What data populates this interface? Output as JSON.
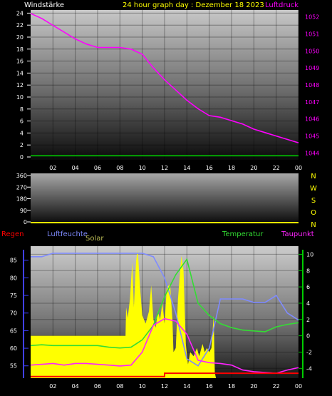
{
  "title": "24 hour graph day : Dezember 18 2023",
  "colors": {
    "background": "#000000",
    "title": "#ffff00",
    "axis_text": "#ffffff",
    "pressure": "#ff00ff",
    "wind": "#00cc00",
    "humidity": "#7f8bff",
    "solar": "#ffff00",
    "temperature": "#33dd33",
    "dewpoint": "#ff22ff",
    "rain": "#ff0000",
    "left_scale": "#4040ff",
    "right_scale": "#00cc00"
  },
  "chart_data": [
    {
      "type": "line",
      "name": "pressure_wind",
      "left_label": "Windstärke",
      "right_label": "Luftdruck",
      "x_ticks": [
        "02",
        "04",
        "06",
        "08",
        "10",
        "12",
        "14",
        "16",
        "18",
        "20",
        "22",
        "00"
      ],
      "x": [
        0,
        1,
        2,
        3,
        4,
        5,
        6,
        7,
        8,
        9,
        10,
        11,
        12,
        13,
        14,
        15,
        16,
        17,
        18,
        19,
        20,
        21,
        22,
        23,
        24
      ],
      "y_left_ticks": [
        "0",
        "2",
        "4",
        "6",
        "8",
        "10",
        "12",
        "14",
        "16",
        "18",
        "20",
        "22",
        "24"
      ],
      "y_left_range": [
        0,
        25
      ],
      "y_right_ticks": [
        "1044",
        "1045",
        "1046",
        "1047",
        "1048",
        "1049",
        "1050",
        "1051",
        "1052"
      ],
      "y_right_range": [
        1043.6,
        1052.4
      ],
      "series": [
        {
          "name": "Luftdruck",
          "axis": "right",
          "values": [
            1052.2,
            1051.9,
            1051.5,
            1051.1,
            1050.7,
            1050.4,
            1050.2,
            1050.2,
            1050.2,
            1050.1,
            1049.8,
            1049.0,
            1048.3,
            1047.7,
            1047.1,
            1046.6,
            1046.2,
            1046.1,
            1045.9,
            1045.7,
            1045.4,
            1045.2,
            1045.0,
            1044.8,
            1044.6
          ]
        },
        {
          "name": "Windstärke",
          "axis": "left",
          "values": [
            0.2,
            0.2,
            0.2,
            0.2,
            0.2,
            0.2,
            0.2,
            0.2,
            0.2,
            0.2,
            0.2,
            0.2,
            0.2,
            0.2,
            0.2,
            0.2,
            0.2,
            0.2,
            0.2,
            0.2,
            0.2,
            0.2,
            0.2,
            0.2,
            0.2
          ]
        }
      ]
    },
    {
      "type": "line",
      "name": "wind_direction",
      "y_left_ticks": [
        "0",
        "90",
        "180",
        "270",
        "360"
      ],
      "y_left_range": [
        0,
        360
      ],
      "direction_letters": [
        "N",
        "W",
        "S",
        "O",
        "N"
      ],
      "x": [
        0,
        24
      ],
      "series": [
        {
          "name": "Windrichtung",
          "values": [
            0,
            0
          ]
        }
      ]
    },
    {
      "type": "line",
      "name": "weather",
      "labels": {
        "rain": "Regen",
        "humidity": "Luftfeuchte",
        "solar": "Solar",
        "temperature": "Temperatur",
        "dewpoint": "Taupunkt"
      },
      "x_ticks": [
        "02",
        "04",
        "06",
        "08",
        "10",
        "12",
        "14",
        "16",
        "18",
        "20",
        "22",
        "00"
      ],
      "y_left_ticks": [
        "55",
        "60",
        "65",
        "70",
        "75",
        "80",
        "85"
      ],
      "y_left_range": [
        51.5,
        89
      ],
      "y_right_ticks": [
        "-4",
        "-2",
        "0",
        "2",
        "4",
        "6",
        "8",
        "10"
      ],
      "y_right_range": [
        -5.2,
        11
      ],
      "x": [
        0,
        1,
        2,
        3,
        4,
        5,
        6,
        7,
        8,
        9,
        10,
        11,
        12,
        13,
        14,
        15,
        16,
        17,
        18,
        19,
        20,
        21,
        22,
        23,
        24
      ],
      "series": [
        {
          "name": "Luftfeuchte",
          "axis": "left",
          "values": [
            86,
            86,
            87,
            87,
            87,
            87,
            87,
            87,
            87,
            87,
            87,
            86,
            80,
            70,
            57,
            55,
            60,
            74,
            74,
            74,
            73,
            73,
            75,
            70,
            68
          ]
        },
        {
          "name": "Temperatur",
          "axis": "right",
          "values": [
            -1.2,
            -1.1,
            -1.2,
            -1.2,
            -1.2,
            -1.2,
            -1.2,
            -1.4,
            -1.5,
            -1.4,
            -0.5,
            1.3,
            4.8,
            7.5,
            9.4,
            4.0,
            2.5,
            1.5,
            1.0,
            0.7,
            0.6,
            0.5,
            1.1,
            1.4,
            1.6
          ]
        },
        {
          "name": "Taupunkt",
          "axis": "right",
          "values": [
            -3.6,
            -3.5,
            -3.4,
            -3.6,
            -3.4,
            -3.4,
            -3.5,
            -3.6,
            -3.7,
            -3.6,
            -2.0,
            1.3,
            2.1,
            1.8,
            0.2,
            -3.0,
            -3.3,
            -3.4,
            -3.6,
            -4.2,
            -4.4,
            -4.5,
            -4.6,
            -4.2,
            -3.9
          ]
        },
        {
          "name": "Solar",
          "points": [
            [
              0,
              0
            ],
            [
              8.5,
              0
            ],
            [
              8.55,
              3.5
            ],
            [
              8.7,
              2.2
            ],
            [
              8.9,
              4.5
            ],
            [
              9.1,
              9.0
            ],
            [
              9.25,
              3.5
            ],
            [
              9.45,
              9.2
            ],
            [
              9.6,
              10.5
            ],
            [
              9.8,
              6.0
            ],
            [
              10.0,
              2.5
            ],
            [
              10.3,
              1.5
            ],
            [
              10.6,
              3.0
            ],
            [
              10.8,
              6.2
            ],
            [
              11.0,
              2.0
            ],
            [
              11.2,
              1.0
            ],
            [
              11.4,
              3.0
            ],
            [
              11.6,
              2.0
            ],
            [
              11.8,
              4.0
            ],
            [
              12.0,
              1.5
            ],
            [
              12.2,
              6.0
            ],
            [
              12.5,
              6.3
            ],
            [
              12.7,
              2.0
            ],
            [
              12.8,
              -2.0
            ],
            [
              13.0,
              -1.5
            ],
            [
              13.2,
              4.5
            ],
            [
              13.5,
              9.8
            ],
            [
              13.7,
              8.0
            ],
            [
              13.9,
              -1.0
            ],
            [
              14.1,
              -3.5
            ],
            [
              14.3,
              -2.0
            ],
            [
              14.6,
              -2.5
            ],
            [
              14.9,
              -1.5
            ],
            [
              15.1,
              -2.5
            ],
            [
              15.4,
              -1.0
            ],
            [
              15.6,
              -2.0
            ],
            [
              15.8,
              -1.5
            ],
            [
              16.0,
              -2.0
            ],
            [
              16.2,
              -1.5
            ],
            [
              16.4,
              2.5
            ],
            [
              16.5,
              -4.5
            ],
            [
              16.6,
              -5.2
            ],
            [
              24,
              -5.2
            ]
          ]
        },
        {
          "name": "Regen",
          "points": [
            [
              0,
              -5.0
            ],
            [
              12,
              -5.0
            ],
            [
              12,
              -4.6
            ],
            [
              24,
              -4.6
            ]
          ]
        }
      ]
    }
  ]
}
